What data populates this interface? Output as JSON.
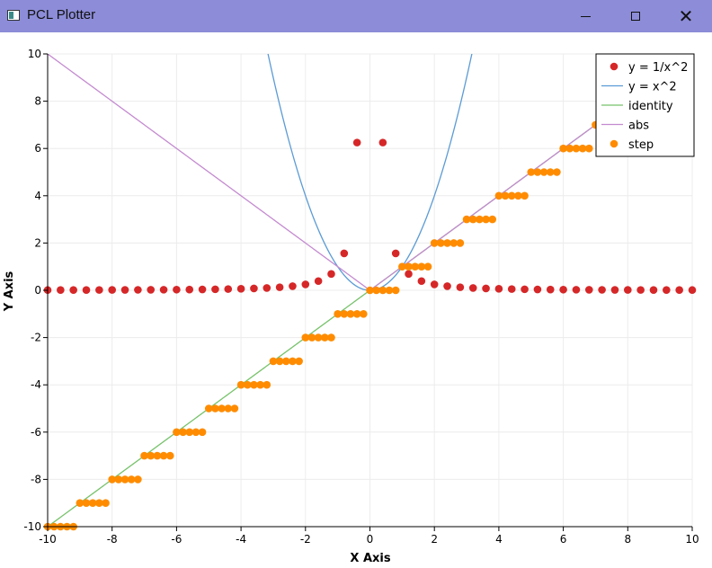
{
  "window": {
    "title": "PCL Plotter",
    "icon": "app-icon",
    "controls": {
      "minimize_icon": "minimize-icon",
      "maximize_icon": "maximize-icon",
      "close_icon": "close-icon"
    },
    "titlebar_color": "#8c8cd8"
  },
  "chart_data": {
    "type": "line",
    "xlabel": "X Axis",
    "ylabel": "Y Axis",
    "xlim": [
      -10,
      10
    ],
    "ylim": [
      -10,
      10
    ],
    "x_ticks": [
      "-10",
      "-8",
      "-6",
      "-4",
      "-2",
      "0",
      "2",
      "4",
      "6",
      "8",
      "10"
    ],
    "y_ticks": [
      "-10",
      "-8",
      "-6",
      "-4",
      "-2",
      "0",
      "2",
      "4",
      "6",
      "8",
      "10"
    ],
    "grid": true,
    "legend_position": "top-right",
    "series": [
      {
        "name": "y = 1/x^2",
        "kind": "scatter",
        "color": "#d62728",
        "points": [
          [
            -10,
            0.01
          ],
          [
            -9.6,
            0.011
          ],
          [
            -9.2,
            0.012
          ],
          [
            -8.8,
            0.013
          ],
          [
            -8.4,
            0.014
          ],
          [
            -8,
            0.016
          ],
          [
            -7.6,
            0.017
          ],
          [
            -7.2,
            0.019
          ],
          [
            -6.8,
            0.022
          ],
          [
            -6.4,
            0.024
          ],
          [
            -6,
            0.028
          ],
          [
            -5.6,
            0.032
          ],
          [
            -5.2,
            0.037
          ],
          [
            -4.8,
            0.043
          ],
          [
            -4.4,
            0.052
          ],
          [
            -4,
            0.063
          ],
          [
            -3.6,
            0.077
          ],
          [
            -3.2,
            0.098
          ],
          [
            -2.8,
            0.128
          ],
          [
            -2.4,
            0.174
          ],
          [
            -2,
            0.25
          ],
          [
            -1.6,
            0.39
          ],
          [
            -1.2,
            0.69
          ],
          [
            -0.8,
            1.56
          ],
          [
            -0.4,
            6.25
          ],
          [
            0.4,
            6.25
          ],
          [
            0.8,
            1.56
          ],
          [
            1.2,
            0.69
          ],
          [
            1.6,
            0.39
          ],
          [
            2,
            0.25
          ],
          [
            2.4,
            0.174
          ],
          [
            2.8,
            0.128
          ],
          [
            3.2,
            0.098
          ],
          [
            3.6,
            0.077
          ],
          [
            4,
            0.063
          ],
          [
            4.4,
            0.052
          ],
          [
            4.8,
            0.043
          ],
          [
            5.2,
            0.037
          ],
          [
            5.6,
            0.032
          ],
          [
            6,
            0.028
          ],
          [
            6.4,
            0.024
          ],
          [
            6.8,
            0.022
          ],
          [
            7.2,
            0.019
          ],
          [
            7.6,
            0.017
          ],
          [
            8,
            0.016
          ],
          [
            8.4,
            0.014
          ],
          [
            8.8,
            0.013
          ],
          [
            9.2,
            0.012
          ],
          [
            9.6,
            0.011
          ],
          [
            10,
            0.01
          ]
        ]
      },
      {
        "name": "y = x^2",
        "kind": "line",
        "color": "#5b9bd5",
        "function": "x^2"
      },
      {
        "name": "identity",
        "kind": "line",
        "color": "#77c26b",
        "function": "x"
      },
      {
        "name": "abs",
        "kind": "line",
        "color": "#c48bd0",
        "function": "abs"
      },
      {
        "name": "step",
        "kind": "scatter",
        "color": "#ff8c00",
        "points": [
          [
            -10,
            -10
          ],
          [
            -9.8,
            -10
          ],
          [
            -9.6,
            -10
          ],
          [
            -9.4,
            -10
          ],
          [
            -9.2,
            -10
          ],
          [
            -9,
            -9
          ],
          [
            -8.8,
            -9
          ],
          [
            -8.6,
            -9
          ],
          [
            -8.4,
            -9
          ],
          [
            -8.2,
            -9
          ],
          [
            -8,
            -8
          ],
          [
            -7.8,
            -8
          ],
          [
            -7.6,
            -8
          ],
          [
            -7.4,
            -8
          ],
          [
            -7.2,
            -8
          ],
          [
            -7,
            -7
          ],
          [
            -6.8,
            -7
          ],
          [
            -6.6,
            -7
          ],
          [
            -6.4,
            -7
          ],
          [
            -6.2,
            -7
          ],
          [
            -6,
            -6
          ],
          [
            -5.8,
            -6
          ],
          [
            -5.6,
            -6
          ],
          [
            -5.4,
            -6
          ],
          [
            -5.2,
            -6
          ],
          [
            -5,
            -5
          ],
          [
            -4.8,
            -5
          ],
          [
            -4.6,
            -5
          ],
          [
            -4.4,
            -5
          ],
          [
            -4.2,
            -5
          ],
          [
            -4,
            -4
          ],
          [
            -3.8,
            -4
          ],
          [
            -3.6,
            -4
          ],
          [
            -3.4,
            -4
          ],
          [
            -3.2,
            -4
          ],
          [
            -3,
            -3
          ],
          [
            -2.8,
            -3
          ],
          [
            -2.6,
            -3
          ],
          [
            -2.4,
            -3
          ],
          [
            -2.2,
            -3
          ],
          [
            -2,
            -2
          ],
          [
            -1.8,
            -2
          ],
          [
            -1.6,
            -2
          ],
          [
            -1.4,
            -2
          ],
          [
            -1.2,
            -2
          ],
          [
            -1,
            -1
          ],
          [
            -0.8,
            -1
          ],
          [
            -0.6,
            -1
          ],
          [
            -0.4,
            -1
          ],
          [
            -0.2,
            -1
          ],
          [
            0,
            0
          ],
          [
            0.2,
            0
          ],
          [
            0.4,
            0
          ],
          [
            0.6,
            0
          ],
          [
            0.8,
            0
          ],
          [
            1,
            1
          ],
          [
            1.2,
            1
          ],
          [
            1.4,
            1
          ],
          [
            1.6,
            1
          ],
          [
            1.8,
            1
          ],
          [
            2,
            2
          ],
          [
            2.2,
            2
          ],
          [
            2.4,
            2
          ],
          [
            2.6,
            2
          ],
          [
            2.8,
            2
          ],
          [
            3,
            3
          ],
          [
            3.2,
            3
          ],
          [
            3.4,
            3
          ],
          [
            3.6,
            3
          ],
          [
            3.8,
            3
          ],
          [
            4,
            4
          ],
          [
            4.2,
            4
          ],
          [
            4.4,
            4
          ],
          [
            4.6,
            4
          ],
          [
            4.8,
            4
          ],
          [
            5,
            5
          ],
          [
            5.2,
            5
          ],
          [
            5.4,
            5
          ],
          [
            5.6,
            5
          ],
          [
            5.8,
            5
          ],
          [
            6,
            6
          ],
          [
            6.2,
            6
          ],
          [
            6.4,
            6
          ],
          [
            6.6,
            6
          ],
          [
            6.8,
            6
          ],
          [
            7,
            7
          ]
        ]
      }
    ]
  }
}
